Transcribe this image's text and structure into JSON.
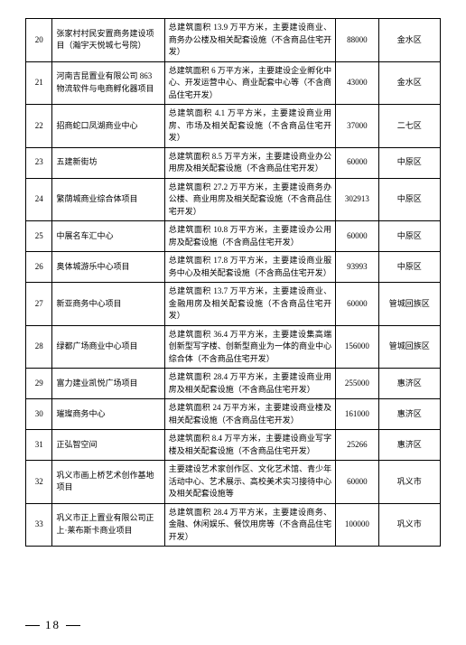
{
  "table": {
    "rows": [
      {
        "no": "20",
        "name": "张家村村民安置商务建设项目（瀚宇天悦城七号院）",
        "desc": "总建筑面积 13.9 万平方米，主要建设商业、商务办公楼及相关配套设施（不含商品住宅开发）",
        "val": "88000",
        "area": "金水区"
      },
      {
        "no": "21",
        "name": "河南吉昆置业有限公司 863 物流软件与电商孵化器项目",
        "desc": "总建筑面积 6 万平方米，主要建设企业孵化中心、开发运营中心、商业配套中心等（不含商品住宅开发）",
        "val": "43000",
        "area": "金水区"
      },
      {
        "no": "22",
        "name": "招商蛇口凤湖商业中心",
        "desc": "总建筑面积 4.1 万平方米，主要建设商业用房、市场及相关配套设施（不含商品住宅开发）",
        "val": "37000",
        "area": "二七区"
      },
      {
        "no": "23",
        "name": "五建新街坊",
        "desc": "总建筑面积 8.5 万平方米，主要建设商业办公用房及相关配套设施（不含商品住宅开发）",
        "val": "60000",
        "area": "中原区"
      },
      {
        "no": "24",
        "name": "繁荫城商业综合体项目",
        "desc": "总建筑面积 27.2 万平方米，主要建设商务办公楼、商业用房及相关配套设施（不含商品住宅开发）",
        "val": "302913",
        "area": "中原区"
      },
      {
        "no": "25",
        "name": "中展名车汇中心",
        "desc": "总建筑面积 10.8 万平方米，主要建设办公用房及配套设施（不含商品住宅开发）",
        "val": "60000",
        "area": "中原区"
      },
      {
        "no": "26",
        "name": "奥体城游乐中心项目",
        "desc": "总建筑面积 17.8 万平方米，主要建设商业服务中心及相关配套设施（不含商品住宅开发）",
        "val": "93993",
        "area": "中原区"
      },
      {
        "no": "27",
        "name": "新亚商务中心项目",
        "desc": "总建筑面积 13.7 万平方米，主要建设商业、金融用房及相关配套设施（不含商品住宅开发）",
        "val": "60000",
        "area": "管城回族区"
      },
      {
        "no": "28",
        "name": "绿都广场商业中心项目",
        "desc": "总建筑面积 36.4 万平方米，主要建设集高端创新型写字楼、创新型商业为一体的商业中心综合体（不含商品住宅开发）",
        "val": "156000",
        "area": "管城回族区"
      },
      {
        "no": "29",
        "name": "富力建业凯悦广场项目",
        "desc": "总建筑面积 28.4 万平方米，主要建设商业用房及相关配套设施（不含商品住宅开发）",
        "val": "255000",
        "area": "惠济区"
      },
      {
        "no": "30",
        "name": "璀璨商务中心",
        "desc": "总建筑面积 24 万平方米，主要建设商业楼及相关配套设施（不含商品住宅开发）",
        "val": "161000",
        "area": "惠济区"
      },
      {
        "no": "31",
        "name": "正弘智空间",
        "desc": "总建筑面积 8.4 万平方米，主要建设商业写字楼及相关配套设施（不含商品住宅开发）",
        "val": "25266",
        "area": "惠济区"
      },
      {
        "no": "32",
        "name": "巩义市画上桥艺术创作基地项目",
        "desc": "主要建设艺术家创作区、文化艺术馆、青少年活动中心、艺术展示、高校美术实习接待中心及相关配套设施等",
        "val": "60000",
        "area": "巩义市"
      },
      {
        "no": "33",
        "name": "巩义市正上置业有限公司正上·莱布斯卡商业项目",
        "desc": "总建筑面积 28.4 万平方米，主要建设商务、金融、休闲娱乐、餐饮用房等（不含商品住宅开发）",
        "val": "100000",
        "area": "巩义市"
      }
    ]
  },
  "footer": {
    "page": "18"
  },
  "style": {
    "font_family": "SimSun",
    "cell_font_size": 9,
    "border_color": "#000000",
    "background": "#ffffff"
  }
}
